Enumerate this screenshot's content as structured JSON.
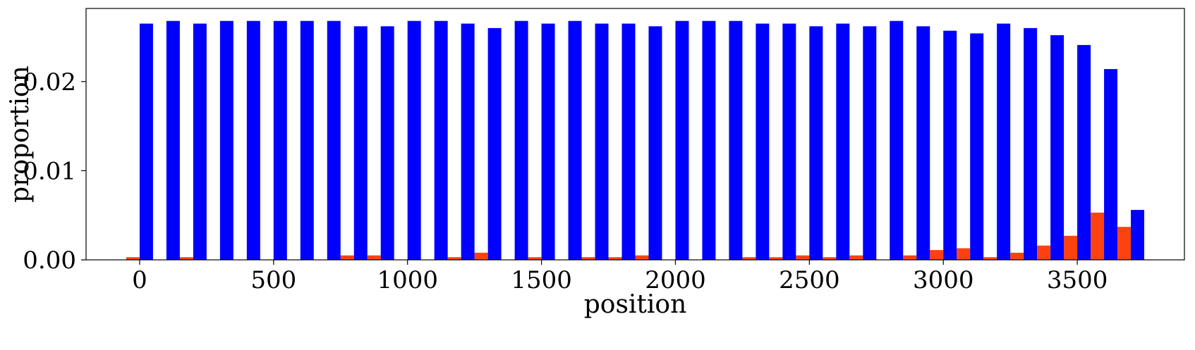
{
  "chart_data": {
    "type": "bar",
    "xlabel": "position",
    "ylabel": "proportion",
    "xlim": [
      -200,
      3900
    ],
    "ylim": [
      0,
      0.0282
    ],
    "xticks": [
      0,
      500,
      1000,
      1500,
      2000,
      2500,
      3000,
      3500
    ],
    "xtick_labels": [
      "0",
      "500",
      "1000",
      "1500",
      "2000",
      "2500",
      "3000",
      "3500"
    ],
    "yticks": [
      0.0,
      0.01,
      0.02
    ],
    "ytick_labels": [
      "0.00",
      "0.01",
      "0.02"
    ],
    "bin_width": 100,
    "bin_starts": [
      0,
      100,
      200,
      300,
      400,
      500,
      600,
      700,
      800,
      900,
      1000,
      1100,
      1200,
      1300,
      1400,
      1500,
      1600,
      1700,
      1800,
      1900,
      2000,
      2100,
      2200,
      2300,
      2400,
      2500,
      2600,
      2700,
      2800,
      2900,
      3000,
      3100,
      3200,
      3300,
      3400,
      3500,
      3600,
      3700
    ],
    "series": [
      {
        "color": "#fe420f",
        "values": [
          0.0003,
          0.0,
          0.0003,
          0.0,
          0.0,
          0.0,
          0.0,
          0.0,
          0.0005,
          0.0005,
          0.0,
          0.0,
          0.0003,
          0.0008,
          0.0,
          0.0003,
          0.0,
          0.0003,
          0.0003,
          0.0005,
          0.0,
          0.0,
          0.0,
          0.0003,
          0.0003,
          0.0005,
          0.0003,
          0.0005,
          0.0,
          0.0005,
          0.0011,
          0.0013,
          0.0003,
          0.0008,
          0.0016,
          0.0027,
          0.0053,
          0.0037
        ]
      },
      {
        "color": "#0000ff",
        "values": [
          0.0265,
          0.0268,
          0.0265,
          0.0268,
          0.0268,
          0.0268,
          0.0268,
          0.0268,
          0.0262,
          0.0262,
          0.0268,
          0.0268,
          0.0265,
          0.026,
          0.0268,
          0.0265,
          0.0268,
          0.0265,
          0.0265,
          0.0262,
          0.0268,
          0.0268,
          0.0268,
          0.0265,
          0.0265,
          0.0262,
          0.0265,
          0.0262,
          0.0268,
          0.0262,
          0.0257,
          0.0254,
          0.0265,
          0.026,
          0.0252,
          0.0241,
          0.0214,
          0.0056
        ]
      }
    ]
  }
}
